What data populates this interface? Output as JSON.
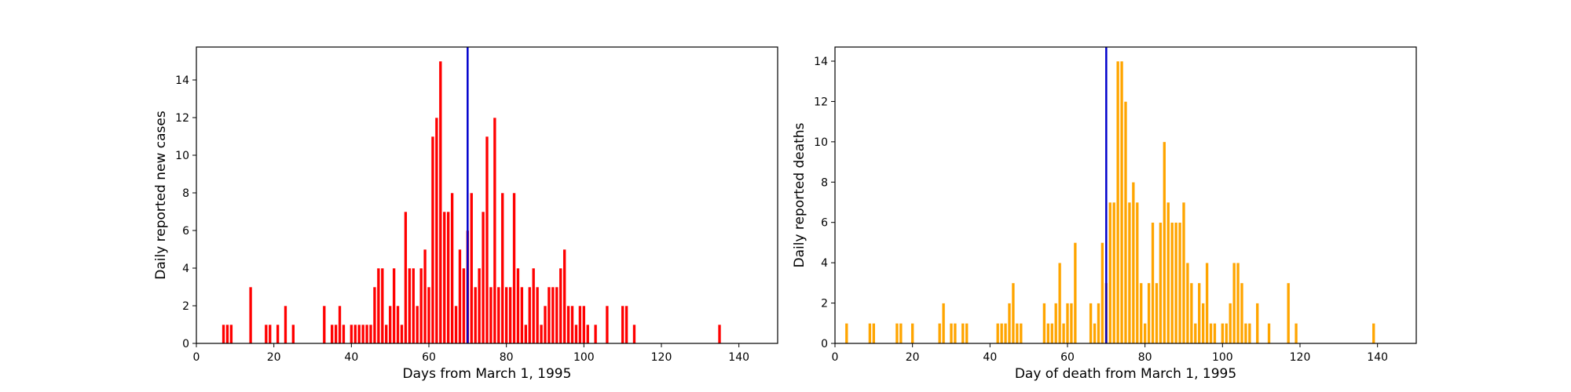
{
  "chart_data": [
    {
      "type": "bar",
      "xlabel": "Days from March 1, 1995",
      "ylabel": "Daily reported new cases",
      "xlim": [
        0,
        150
      ],
      "ylim": [
        0,
        15.75
      ],
      "xticks": [
        0,
        20,
        40,
        60,
        80,
        100,
        120,
        140
      ],
      "yticks": [
        0,
        2,
        4,
        6,
        8,
        10,
        12,
        14
      ],
      "grid": false,
      "bar_color": "#ff0000",
      "bar_edge_color": "#ffffff",
      "vline_x": 70,
      "vline_color": "#0000cc",
      "series": [
        {
          "x": [
            7,
            8,
            9,
            14,
            18,
            19,
            21,
            23,
            25,
            33,
            35,
            36,
            37,
            38,
            40,
            41,
            42,
            43,
            44,
            45,
            46,
            47,
            48,
            49,
            50,
            51,
            52,
            53,
            54,
            55,
            56,
            57,
            58,
            59,
            60,
            61,
            62,
            63,
            64,
            65,
            66,
            67,
            68,
            69,
            70,
            71,
            72,
            73,
            74,
            75,
            76,
            77,
            78,
            79,
            80,
            81,
            82,
            83,
            84,
            85,
            86,
            87,
            88,
            89,
            90,
            91,
            92,
            93,
            94,
            95,
            96,
            97,
            98,
            99,
            100,
            101,
            103,
            106,
            110,
            111,
            113,
            135
          ],
          "y": [
            1,
            1,
            1,
            3,
            1,
            1,
            1,
            2,
            1,
            2,
            1,
            1,
            2,
            1,
            1,
            1,
            1,
            1,
            1,
            1,
            3,
            4,
            4,
            1,
            2,
            4,
            2,
            1,
            7,
            4,
            4,
            2,
            4,
            5,
            3,
            11,
            12,
            15,
            7,
            7,
            8,
            2,
            5,
            4,
            6,
            8,
            3,
            4,
            7,
            11,
            3,
            12,
            3,
            8,
            3,
            3,
            8,
            4,
            3,
            1,
            3,
            4,
            3,
            1,
            2,
            3,
            3,
            3,
            4,
            5,
            2,
            2,
            1,
            2,
            2,
            1,
            1,
            2,
            2,
            2,
            1,
            1
          ]
        }
      ]
    },
    {
      "type": "bar",
      "xlabel": "Day of death from March 1, 1995",
      "ylabel": "Daily reported deaths",
      "xlim": [
        0,
        150
      ],
      "ylim": [
        0,
        14.7
      ],
      "xticks": [
        0,
        20,
        40,
        60,
        80,
        100,
        120,
        140
      ],
      "yticks": [
        0,
        2,
        4,
        6,
        8,
        10,
        12,
        14
      ],
      "grid": false,
      "bar_color": "#ffa500",
      "bar_edge_color": "#ffffff",
      "vline_x": 70,
      "vline_color": "#0000cc",
      "series": [
        {
          "x": [
            3,
            9,
            10,
            16,
            17,
            20,
            27,
            28,
            30,
            31,
            33,
            34,
            42,
            43,
            44,
            45,
            46,
            47,
            48,
            54,
            55,
            56,
            57,
            58,
            59,
            60,
            61,
            62,
            66,
            67,
            68,
            69,
            70,
            71,
            72,
            73,
            74,
            75,
            76,
            77,
            78,
            79,
            80,
            81,
            82,
            83,
            84,
            85,
            86,
            87,
            88,
            89,
            90,
            91,
            92,
            93,
            94,
            95,
            96,
            97,
            98,
            100,
            101,
            102,
            103,
            104,
            105,
            106,
            107,
            109,
            112,
            117,
            119,
            139
          ],
          "y": [
            1,
            1,
            1,
            1,
            1,
            1,
            1,
            2,
            1,
            1,
            1,
            1,
            1,
            1,
            1,
            2,
            3,
            1,
            1,
            2,
            1,
            1,
            2,
            4,
            1,
            2,
            2,
            5,
            2,
            1,
            2,
            5,
            3,
            7,
            7,
            14,
            14,
            12,
            7,
            8,
            7,
            3,
            1,
            3,
            6,
            3,
            6,
            10,
            7,
            6,
            6,
            6,
            7,
            4,
            3,
            1,
            3,
            2,
            4,
            1,
            1,
            1,
            1,
            2,
            4,
            4,
            3,
            1,
            1,
            2,
            1,
            3,
            1,
            1
          ]
        }
      ]
    }
  ]
}
